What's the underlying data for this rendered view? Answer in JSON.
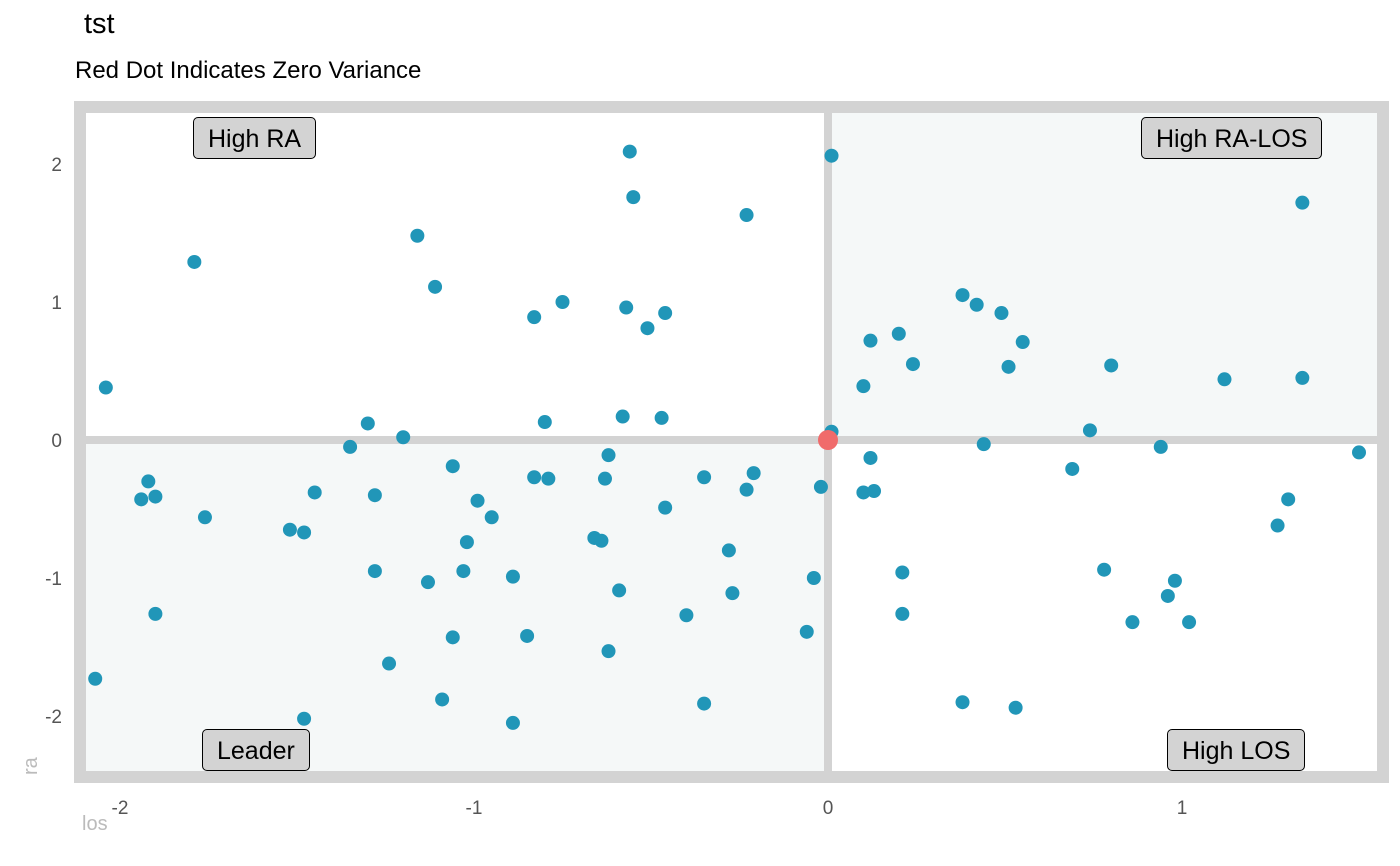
{
  "chart_data": {
    "type": "scatter",
    "title": "tst",
    "subtitle": "Red Dot Indicates Zero Variance",
    "xlabel": "los",
    "ylabel": "ra",
    "xlim": [
      -2.1,
      1.55
    ],
    "ylim": [
      -2.4,
      2.4
    ],
    "x_ticks": [
      "-2",
      "-1",
      "0",
      "1"
    ],
    "y_ticks": [
      "2",
      "1",
      "0",
      "-1",
      "-2"
    ],
    "x_tick_values": [
      -2,
      -1,
      0,
      1
    ],
    "y_tick_values": [
      2,
      1,
      0,
      -1,
      -2
    ],
    "quadrant_labels": {
      "top_left": "High RA",
      "top_right": "High RA-LOS",
      "bottom_left": "Leader",
      "bottom_right": "High LOS"
    },
    "colors": {
      "points": "#2196b8",
      "zero_point": "#f06b6b",
      "shaded_quadrants": "#f5f8f8",
      "dividers": "#d3d3d3",
      "label_fill": "#d3d3d3"
    },
    "zero_point": {
      "x": 0,
      "y": 0
    },
    "points": [
      [
        -2.04,
        0.38
      ],
      [
        -2.07,
        -1.73
      ],
      [
        -1.94,
        -0.43
      ],
      [
        -1.92,
        -0.3
      ],
      [
        -1.9,
        -0.41
      ],
      [
        -1.9,
        -1.26
      ],
      [
        -1.79,
        1.29
      ],
      [
        -1.76,
        -0.56
      ],
      [
        -1.52,
        -0.65
      ],
      [
        -1.48,
        -0.67
      ],
      [
        -1.45,
        -0.38
      ],
      [
        -1.48,
        -2.02
      ],
      [
        -1.35,
        -0.05
      ],
      [
        -1.3,
        0.12
      ],
      [
        -1.28,
        -0.4
      ],
      [
        -1.28,
        -0.95
      ],
      [
        -1.24,
        -1.62
      ],
      [
        -1.2,
        0.02
      ],
      [
        -1.16,
        1.48
      ],
      [
        -1.13,
        -1.03
      ],
      [
        -1.11,
        1.11
      ],
      [
        -1.09,
        -1.88
      ],
      [
        -1.06,
        -0.19
      ],
      [
        -1.06,
        -1.43
      ],
      [
        -1.03,
        -0.95
      ],
      [
        -1.02,
        -0.74
      ],
      [
        -0.99,
        -0.44
      ],
      [
        -0.95,
        -0.56
      ],
      [
        -0.89,
        -0.99
      ],
      [
        -0.89,
        -2.05
      ],
      [
        -0.85,
        -1.42
      ],
      [
        -0.83,
        0.89
      ],
      [
        -0.83,
        -0.27
      ],
      [
        -0.8,
        0.13
      ],
      [
        -0.79,
        -0.28
      ],
      [
        -0.75,
        1.0
      ],
      [
        -0.66,
        -0.71
      ],
      [
        -0.64,
        -0.73
      ],
      [
        -0.63,
        -0.28
      ],
      [
        -0.62,
        -0.11
      ],
      [
        -0.62,
        -1.53
      ],
      [
        -0.59,
        -1.09
      ],
      [
        -0.58,
        0.17
      ],
      [
        -0.57,
        0.96
      ],
      [
        -0.56,
        2.09
      ],
      [
        -0.55,
        1.76
      ],
      [
        -0.51,
        0.81
      ],
      [
        -0.47,
        0.16
      ],
      [
        -0.46,
        0.92
      ],
      [
        -0.46,
        -0.49
      ],
      [
        -0.4,
        -1.27
      ],
      [
        -0.35,
        -0.27
      ],
      [
        -0.35,
        -1.91
      ],
      [
        -0.28,
        -0.8
      ],
      [
        -0.27,
        -1.11
      ],
      [
        -0.23,
        1.63
      ],
      [
        -0.23,
        -0.36
      ],
      [
        -0.21,
        -0.24
      ],
      [
        -0.06,
        -1.39
      ],
      [
        -0.04,
        -1.0
      ],
      [
        -0.02,
        -0.34
      ],
      [
        0.01,
        2.06
      ],
      [
        0.01,
        0.06
      ],
      [
        0.1,
        0.39
      ],
      [
        0.1,
        -0.38
      ],
      [
        0.12,
        0.72
      ],
      [
        0.12,
        -0.13
      ],
      [
        0.13,
        -0.37
      ],
      [
        0.2,
        0.77
      ],
      [
        0.21,
        -0.96
      ],
      [
        0.21,
        -1.26
      ],
      [
        0.24,
        0.55
      ],
      [
        0.38,
        1.05
      ],
      [
        0.38,
        -1.9
      ],
      [
        0.42,
        0.98
      ],
      [
        0.44,
        -0.03
      ],
      [
        0.49,
        0.92
      ],
      [
        0.51,
        0.53
      ],
      [
        0.53,
        -1.94
      ],
      [
        0.55,
        0.71
      ],
      [
        0.69,
        -0.21
      ],
      [
        0.74,
        0.07
      ],
      [
        0.78,
        -0.94
      ],
      [
        0.8,
        0.54
      ],
      [
        0.86,
        -1.32
      ],
      [
        0.94,
        -0.05
      ],
      [
        0.96,
        -1.13
      ],
      [
        0.98,
        -1.02
      ],
      [
        1.02,
        -1.32
      ],
      [
        1.12,
        0.44
      ],
      [
        1.27,
        -0.62
      ],
      [
        1.3,
        -0.43
      ],
      [
        1.34,
        1.72
      ],
      [
        1.34,
        0.45
      ],
      [
        1.5,
        -0.09
      ]
    ]
  }
}
